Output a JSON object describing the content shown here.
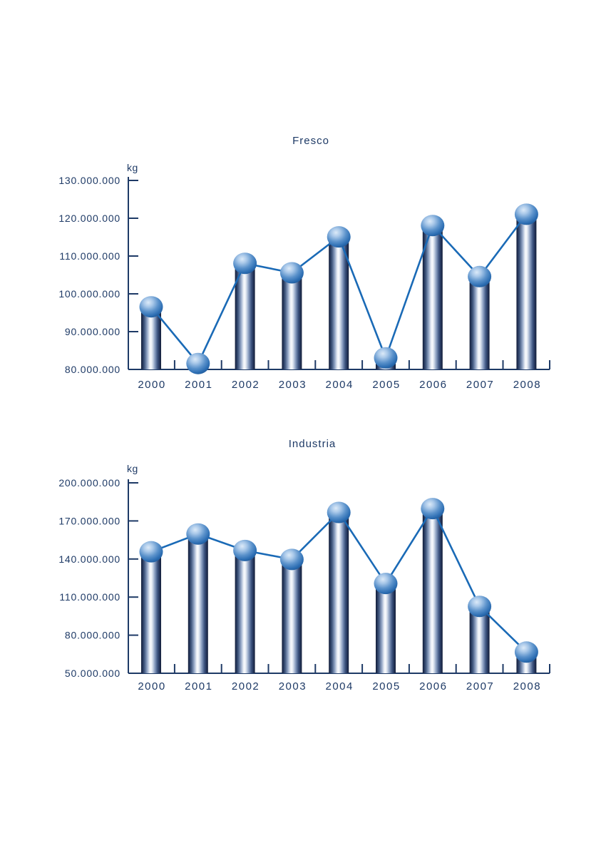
{
  "page": {
    "background_color": "#FFFFFF"
  },
  "colors": {
    "text": "#1E3A66",
    "axis": "#1E3A66",
    "series_line": "#1A6AB6",
    "cylinder_edge": "#141F39",
    "cylinder_mid": "#93A6C6",
    "cylinder_highlight": "#FAFBFD",
    "cylinder_top_light": "#F0F4F9",
    "cylinder_top_dark": "#6E84A8",
    "sphere_highlight": "#DCEAF8",
    "sphere_mid": "#5B92CB",
    "sphere_dark": "#1A5493"
  },
  "chart_data": [
    {
      "type": "bar",
      "subtype": "cylinder-bars-with-sphere-line-markers",
      "title": "Fresco",
      "ylabel": "kg",
      "xlabel": "",
      "categories": [
        "2000",
        "2001",
        "2002",
        "2003",
        "2004",
        "2005",
        "2006",
        "2007",
        "2008"
      ],
      "values": [
        96000000,
        81000000,
        107500000,
        105000000,
        114500000,
        82500000,
        117500000,
        104000000,
        120500000
      ],
      "ylim": [
        80000000,
        130000000
      ],
      "ytick_interval": 10000000,
      "ytick_labels": [
        "130.000.000",
        "120.000.000",
        "110.000.000",
        "100.000.000",
        "90.000.000",
        "80.000.000"
      ],
      "grid": false,
      "legend": "none"
    },
    {
      "type": "bar",
      "subtype": "cylinder-bars-with-sphere-line-markers",
      "title": "Industria",
      "ylabel": "kg",
      "xlabel": "",
      "categories": [
        "2000",
        "2001",
        "2002",
        "2003",
        "2004",
        "2005",
        "2006",
        "2007",
        "2008"
      ],
      "values": [
        144000000,
        158000000,
        145000000,
        138000000,
        175000000,
        119000000,
        178000000,
        101000000,
        65000000
      ],
      "ylim": [
        50000000,
        200000000
      ],
      "ytick_interval": 30000000,
      "ytick_labels": [
        "200.000.000",
        "170.000.000",
        "140.000.000",
        "110.000.000",
        "80.000.000",
        "50.000.000"
      ],
      "grid": false,
      "legend": "none"
    }
  ]
}
